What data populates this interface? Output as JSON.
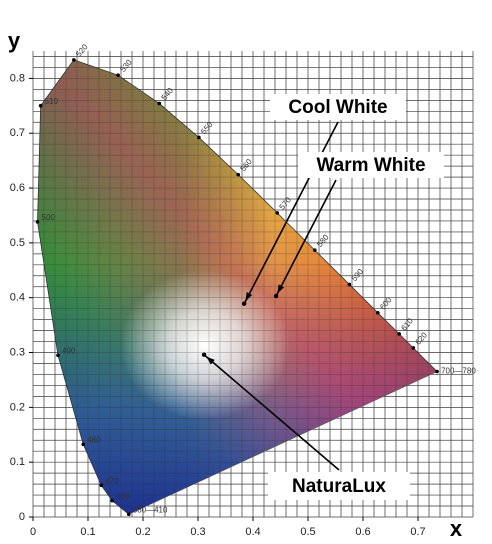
{
  "chart_data": {
    "type": "chromaticity",
    "xlabel": "x",
    "ylabel": "y",
    "xlim": [
      0,
      0.8
    ],
    "ylim": [
      0,
      0.85
    ],
    "xticks": [
      0,
      0.1,
      0.2,
      0.3,
      0.4,
      0.5,
      0.6,
      0.7
    ],
    "yticks": [
      0,
      0.1,
      0.2,
      0.3,
      0.4,
      0.5,
      0.6,
      0.7,
      0.8
    ],
    "xminor": [
      0,
      0.02,
      0.04,
      0.06,
      0.08,
      0.1,
      0.12,
      0.14,
      0.16,
      0.18,
      0.2,
      0.22,
      0.24,
      0.26,
      0.28,
      0.3,
      0.32,
      0.34,
      0.36,
      0.38,
      0.4,
      0.42,
      0.44,
      0.46,
      0.48,
      0.5,
      0.52,
      0.54,
      0.56,
      0.58,
      0.6,
      0.62,
      0.64,
      0.66,
      0.68,
      0.7,
      0.72,
      0.74,
      0.76,
      0.78,
      0.8
    ],
    "yminor": [
      0,
      0.02,
      0.04,
      0.06,
      0.08,
      0.1,
      0.12,
      0.14,
      0.16,
      0.18,
      0.2,
      0.22,
      0.24,
      0.26,
      0.28,
      0.3,
      0.32,
      0.34,
      0.36,
      0.38,
      0.4,
      0.42,
      0.44,
      0.46,
      0.48,
      0.5,
      0.52,
      0.54,
      0.56,
      0.58,
      0.6,
      0.62,
      0.64,
      0.66,
      0.68,
      0.7,
      0.72,
      0.74,
      0.76,
      0.78,
      0.8,
      0.82,
      0.84
    ],
    "grid": true,
    "locus": {
      "labels": [
        "380—410",
        "460",
        "470",
        "480",
        "490",
        "500",
        "510",
        "520",
        "530",
        "540",
        "550",
        "560",
        "570",
        "580",
        "590",
        "600",
        "610",
        "620",
        "700—780"
      ],
      "x": [
        0.1741,
        0.144,
        0.1241,
        0.0913,
        0.0454,
        0.0082,
        0.0139,
        0.0743,
        0.1547,
        0.2296,
        0.3016,
        0.3731,
        0.4441,
        0.5125,
        0.5752,
        0.627,
        0.6658,
        0.6915,
        0.7347
      ],
      "y": [
        0.005,
        0.0297,
        0.0578,
        0.1327,
        0.295,
        0.5384,
        0.7502,
        0.8338,
        0.8059,
        0.7543,
        0.6923,
        0.6245,
        0.5547,
        0.4866,
        0.4242,
        0.3725,
        0.334,
        0.3083,
        0.2653
      ]
    },
    "points": [
      {
        "name": "Cool White",
        "x": 0.384,
        "y": 0.389
      },
      {
        "name": "Warm White",
        "x": 0.442,
        "y": 0.403
      },
      {
        "name": "NaturaLux",
        "x": 0.311,
        "y": 0.296
      }
    ]
  }
}
